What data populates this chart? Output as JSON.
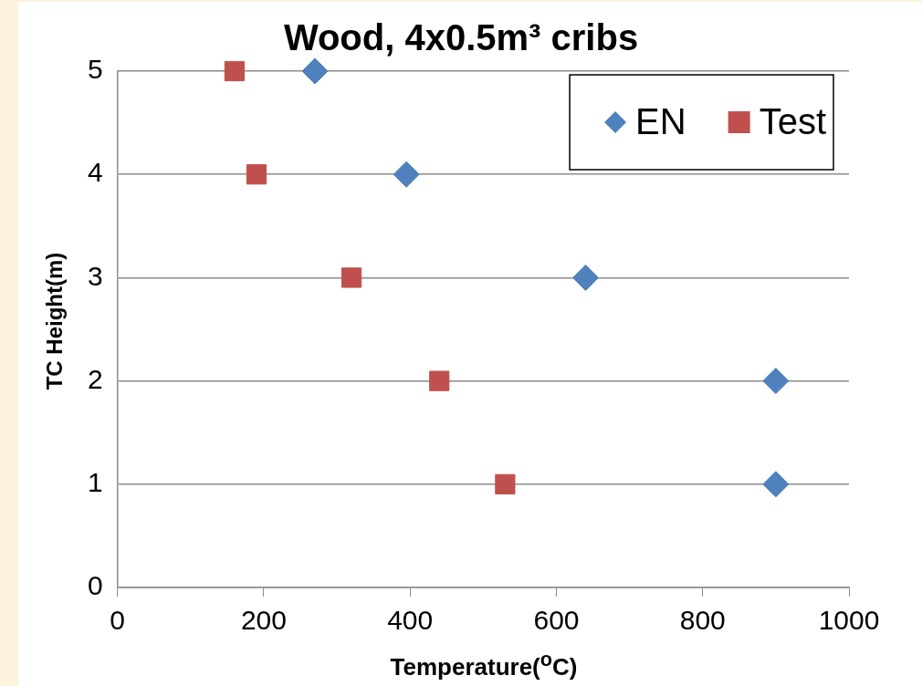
{
  "chart_data": {
    "type": "scatter",
    "title": "Wood, 4x0.5m³ cribs",
    "xlabel": "Temperature($^{o}$C)",
    "ylabel": "TC Height(m)",
    "xlim": [
      0,
      1000
    ],
    "xticks": [
      0,
      200,
      400,
      600,
      800,
      1000
    ],
    "ylim": [
      0,
      5
    ],
    "yticks": [
      0,
      1,
      2,
      3,
      4,
      5
    ],
    "grid": "y",
    "legend": "top right",
    "series": [
      {
        "name": "EN",
        "color": "#4f81bd",
        "marker": "diamond",
        "x": [
          270,
          395,
          640,
          900,
          900
        ],
        "values": [
          5,
          4,
          3,
          2,
          1
        ]
      },
      {
        "name": "Test",
        "color": "#c0504d",
        "marker": "square",
        "x": [
          160,
          190,
          320,
          440,
          530
        ],
        "values": [
          5,
          4,
          3,
          2,
          1
        ]
      }
    ]
  }
}
